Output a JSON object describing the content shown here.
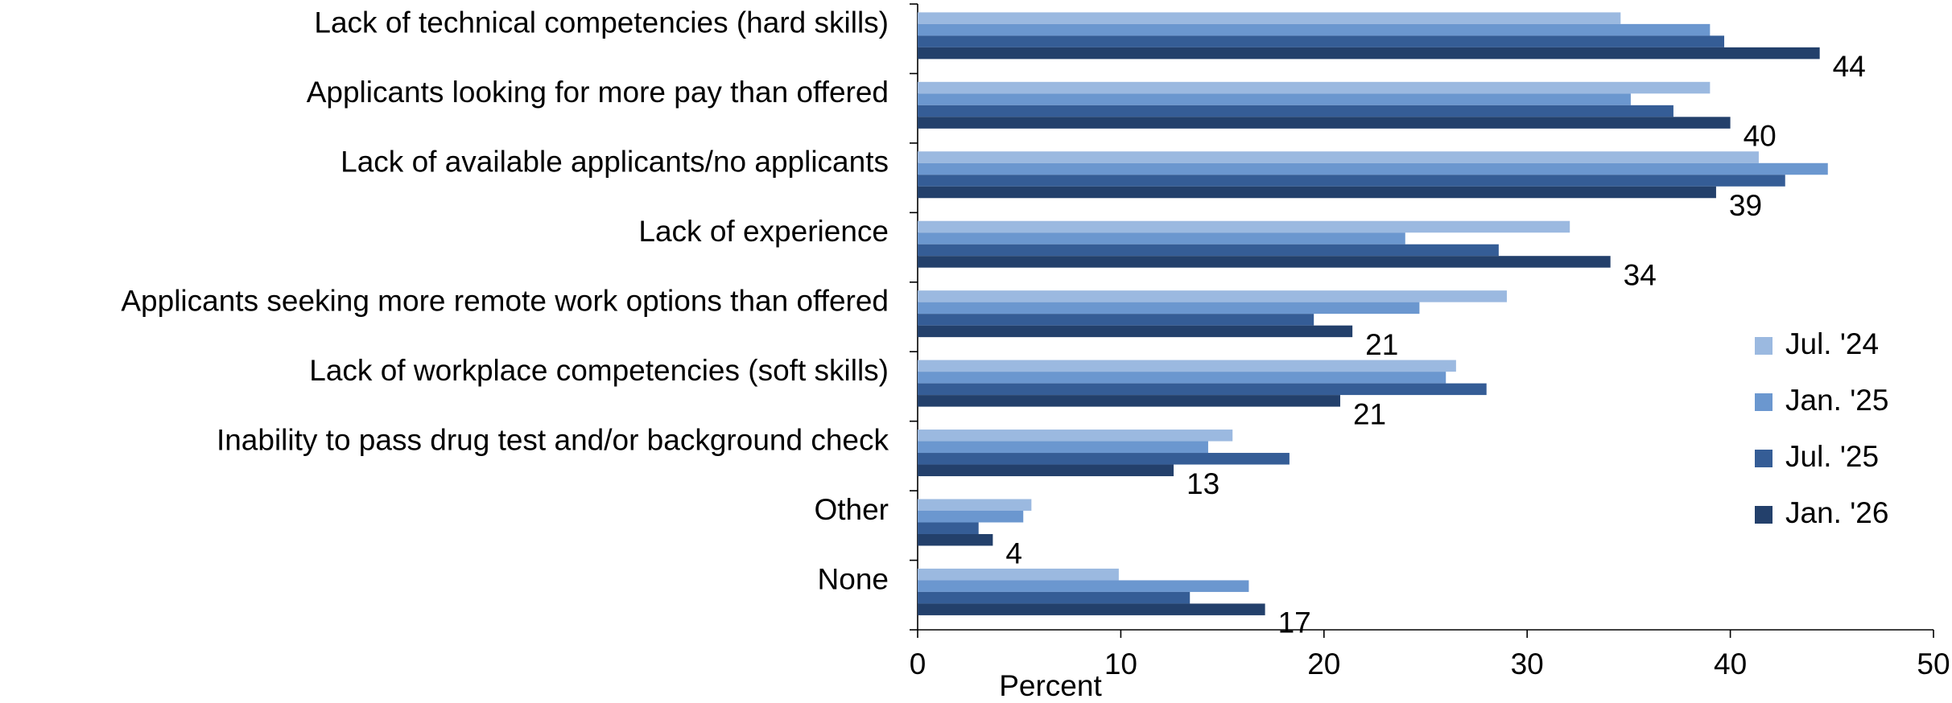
{
  "chart_data": {
    "type": "bar",
    "orientation": "horizontal",
    "x_label": "Percent",
    "categories": [
      "Lack of technical competencies (hard skills)",
      "Applicants looking for more pay than offered",
      "Lack of available applicants/no applicants",
      "Lack of experience",
      "Applicants seeking more remote work options than offered",
      "Lack of workplace competencies (soft skills)",
      "Inability to pass drug test and/or background check",
      "Other",
      "None"
    ],
    "series": [
      {
        "name": "Jul. '24",
        "color": "#9bb9e0",
        "values": [
          34.6,
          39,
          41.4,
          32.1,
          29,
          26.5,
          15.5,
          5.6,
          9.9
        ]
      },
      {
        "name": "Jan. '25",
        "color": "#6b97cf",
        "values": [
          39,
          35.1,
          44.8,
          24,
          24.7,
          26,
          14.3,
          5.2,
          16.3
        ]
      },
      {
        "name": "Jul. '25",
        "color": "#355d96",
        "values": [
          39.7,
          37.2,
          42.7,
          28.6,
          19.5,
          28,
          18.3,
          3,
          13.4
        ]
      },
      {
        "name": "Jan. '26",
        "color": "#23406b",
        "values": [
          44.4,
          40,
          39.3,
          34.1,
          21.4,
          20.8,
          12.6,
          3.7,
          17.1
        ],
        "value_labels": [
          "44",
          "40",
          "39",
          "34",
          "21",
          "21",
          "13",
          "4",
          "17"
        ]
      }
    ],
    "xlim": [
      0,
      50
    ],
    "xticks": [
      0,
      10,
      20,
      30,
      40,
      50
    ],
    "legend": "right"
  }
}
